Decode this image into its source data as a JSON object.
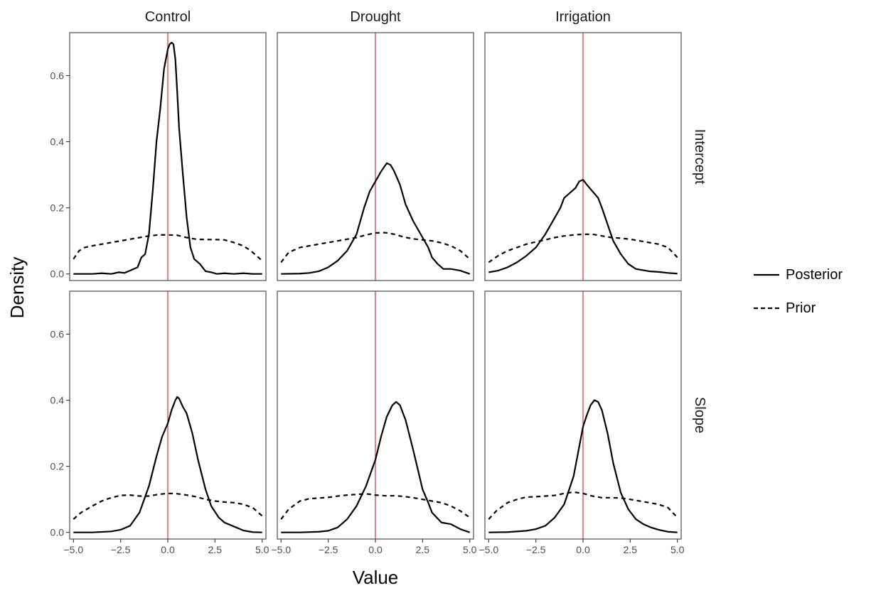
{
  "chart_data": {
    "type": "line",
    "facets": {
      "columns": [
        "Control",
        "Drought",
        "Irrigation"
      ],
      "rows": [
        "Intercept",
        "Slope"
      ]
    },
    "xlabel": "Value",
    "ylabel": "Density",
    "xlim": [
      -5.2,
      5.2
    ],
    "ylim": [
      -0.02,
      0.73
    ],
    "x_ticks": [
      -5.0,
      -2.5,
      0.0,
      2.5,
      5.0
    ],
    "x_tick_labels": [
      "−5.0",
      "−2.5",
      "0.0",
      "2.5",
      "5.0"
    ],
    "y_ticks": [
      0.0,
      0.2,
      0.4,
      0.6
    ],
    "y_tick_labels": [
      "0.0",
      "0.2",
      "0.4",
      "0.6"
    ],
    "reference_line": {
      "x": 0,
      "color": "#e41a1c"
    },
    "legend": {
      "placement": "right",
      "entries": [
        {
          "label": "Posterior",
          "linetype": "solid"
        },
        {
          "label": "Prior",
          "linetype": "dashed"
        }
      ]
    },
    "grid": false,
    "panels": [
      {
        "row": "Intercept",
        "column": "Control",
        "series": [
          {
            "name": "Posterior",
            "linetype": "solid",
            "x": [
              -5,
              -4,
              -3.5,
              -3,
              -2.6,
              -2.3,
              -2,
              -1.6,
              -1.4,
              -1.2,
              -1,
              -0.8,
              -0.6,
              -0.4,
              -0.2,
              0,
              0.1,
              0.2,
              0.3,
              0.4,
              0.5,
              0.6,
              0.8,
              1,
              1.2,
              1.4,
              1.7,
              2,
              2.3,
              2.6,
              3,
              3.5,
              4,
              4.5,
              5
            ],
            "y": [
              0.0,
              0.0,
              0.002,
              0.0,
              0.005,
              0.003,
              0.01,
              0.02,
              0.05,
              0.06,
              0.12,
              0.25,
              0.4,
              0.5,
              0.62,
              0.68,
              0.695,
              0.7,
              0.695,
              0.65,
              0.55,
              0.44,
              0.3,
              0.17,
              0.08,
              0.045,
              0.03,
              0.008,
              0.005,
              0.0,
              0.002,
              0.0,
              0.002,
              0.0,
              0.0
            ]
          },
          {
            "name": "Prior",
            "linetype": "dashed",
            "x": [
              -5,
              -4.7,
              -4.4,
              -4,
              -3.5,
              -3,
              -2.5,
              -2,
              -1.5,
              -1,
              -0.5,
              0,
              0.5,
              1,
              1.5,
              2,
              2.5,
              3,
              3.5,
              4,
              4.4,
              4.7,
              5
            ],
            "y": [
              0.045,
              0.07,
              0.08,
              0.085,
              0.09,
              0.095,
              0.1,
              0.105,
              0.11,
              0.115,
              0.118,
              0.118,
              0.117,
              0.11,
              0.105,
              0.104,
              0.104,
              0.103,
              0.095,
              0.085,
              0.07,
              0.055,
              0.04
            ]
          }
        ]
      },
      {
        "row": "Intercept",
        "column": "Drought",
        "series": [
          {
            "name": "Posterior",
            "linetype": "solid",
            "x": [
              -5,
              -4,
              -3.5,
              -3,
              -2.5,
              -2,
              -1.5,
              -1,
              -0.6,
              -0.3,
              0,
              0.3,
              0.6,
              0.8,
              1,
              1.3,
              1.6,
              2,
              2.5,
              2.8,
              3,
              3.3,
              3.6,
              4,
              4.5,
              5
            ],
            "y": [
              0.0,
              0.001,
              0.003,
              0.008,
              0.02,
              0.04,
              0.07,
              0.12,
              0.2,
              0.25,
              0.28,
              0.31,
              0.335,
              0.33,
              0.31,
              0.27,
              0.21,
              0.16,
              0.11,
              0.08,
              0.05,
              0.03,
              0.015,
              0.015,
              0.01,
              0.0
            ]
          },
          {
            "name": "Prior",
            "linetype": "dashed",
            "x": [
              -5,
              -4.6,
              -4,
              -3.5,
              -3,
              -2.5,
              -2,
              -1.5,
              -1,
              -0.5,
              0,
              0.5,
              1,
              1.5,
              2,
              2.5,
              3,
              3.5,
              4,
              4.5,
              5
            ],
            "y": [
              0.035,
              0.065,
              0.08,
              0.085,
              0.09,
              0.095,
              0.1,
              0.105,
              0.11,
              0.118,
              0.124,
              0.125,
              0.12,
              0.112,
              0.106,
              0.103,
              0.1,
              0.094,
              0.085,
              0.07,
              0.045
            ]
          }
        ]
      },
      {
        "row": "Intercept",
        "column": "Irrigation",
        "series": [
          {
            "name": "Posterior",
            "linetype": "solid",
            "x": [
              -5,
              -4.5,
              -4,
              -3.5,
              -3,
              -2.5,
              -2,
              -1.5,
              -1.2,
              -1,
              -0.7,
              -0.4,
              -0.2,
              0,
              0.2,
              0.5,
              0.8,
              1,
              1.3,
              1.6,
              2,
              2.4,
              2.8,
              3.5,
              4,
              4.5,
              5
            ],
            "y": [
              0.005,
              0.01,
              0.02,
              0.035,
              0.055,
              0.08,
              0.12,
              0.17,
              0.2,
              0.23,
              0.245,
              0.26,
              0.28,
              0.285,
              0.27,
              0.25,
              0.23,
              0.2,
              0.15,
              0.1,
              0.06,
              0.03,
              0.015,
              0.008,
              0.006,
              0.003,
              0.001
            ]
          },
          {
            "name": "Prior",
            "linetype": "dashed",
            "x": [
              -5,
              -4.5,
              -4,
              -3.5,
              -3,
              -2.5,
              -2,
              -1.5,
              -1,
              -0.5,
              0,
              0.5,
              1,
              1.5,
              2,
              2.5,
              3,
              3.5,
              4,
              4.5,
              5
            ],
            "y": [
              0.035,
              0.055,
              0.07,
              0.08,
              0.09,
              0.097,
              0.103,
              0.11,
              0.115,
              0.118,
              0.12,
              0.12,
              0.115,
              0.11,
              0.108,
              0.105,
              0.1,
              0.095,
              0.09,
              0.08,
              0.05
            ]
          }
        ]
      },
      {
        "row": "Slope",
        "column": "Control",
        "series": [
          {
            "name": "Posterior",
            "linetype": "solid",
            "x": [
              -5,
              -4,
              -3,
              -2.5,
              -2,
              -1.5,
              -1,
              -0.6,
              -0.3,
              0,
              0.2,
              0.4,
              0.5,
              0.6,
              0.8,
              1,
              1.3,
              1.6,
              2,
              2.3,
              2.7,
              3,
              3.5,
              4,
              4.5,
              5
            ],
            "y": [
              0.0,
              0.0,
              0.003,
              0.008,
              0.02,
              0.06,
              0.14,
              0.23,
              0.29,
              0.33,
              0.37,
              0.4,
              0.41,
              0.405,
              0.38,
              0.36,
              0.3,
              0.22,
              0.13,
              0.08,
              0.045,
              0.03,
              0.018,
              0.006,
              0.001,
              0.0
            ]
          },
          {
            "name": "Prior",
            "linetype": "dashed",
            "x": [
              -5,
              -4.6,
              -4,
              -3.5,
              -3,
              -2.5,
              -2,
              -1.5,
              -1,
              -0.5,
              0,
              0.5,
              1,
              1.5,
              2,
              2.5,
              3,
              3.5,
              4,
              4.5,
              5
            ],
            "y": [
              0.04,
              0.06,
              0.08,
              0.095,
              0.105,
              0.112,
              0.113,
              0.11,
              0.11,
              0.115,
              0.118,
              0.117,
              0.113,
              0.108,
              0.1,
              0.095,
              0.092,
              0.09,
              0.085,
              0.075,
              0.05
            ]
          }
        ]
      },
      {
        "row": "Slope",
        "column": "Drought",
        "series": [
          {
            "name": "Posterior",
            "linetype": "solid",
            "x": [
              -5,
              -4,
              -3,
              -2.5,
              -2,
              -1.5,
              -1,
              -0.5,
              0,
              0.3,
              0.6,
              0.9,
              1.1,
              1.3,
              1.6,
              2,
              2.5,
              2.8,
              3,
              3.5,
              4,
              4.5,
              5
            ],
            "y": [
              0.0,
              0.0,
              0.002,
              0.005,
              0.015,
              0.04,
              0.08,
              0.14,
              0.22,
              0.29,
              0.35,
              0.385,
              0.395,
              0.385,
              0.34,
              0.25,
              0.13,
              0.09,
              0.06,
              0.03,
              0.025,
              0.01,
              0.0
            ]
          },
          {
            "name": "Prior",
            "linetype": "dashed",
            "x": [
              -5,
              -4.6,
              -4,
              -3.5,
              -3,
              -2.5,
              -2,
              -1.5,
              -1,
              -0.5,
              0,
              0.5,
              1,
              1.5,
              2,
              2.5,
              3,
              3.5,
              4,
              4.5,
              5
            ],
            "y": [
              0.04,
              0.07,
              0.095,
              0.102,
              0.104,
              0.106,
              0.11,
              0.113,
              0.115,
              0.117,
              0.113,
              0.111,
              0.111,
              0.109,
              0.105,
              0.1,
              0.095,
              0.09,
              0.08,
              0.065,
              0.045
            ]
          }
        ]
      },
      {
        "row": "Slope",
        "column": "Irrigation",
        "series": [
          {
            "name": "Posterior",
            "linetype": "solid",
            "x": [
              -5,
              -4,
              -3,
              -2.5,
              -2,
              -1.5,
              -1,
              -0.5,
              -0.2,
              0,
              0.2,
              0.4,
              0.6,
              0.8,
              1,
              1.3,
              1.6,
              2,
              2.4,
              2.8,
              3.2,
              3.6,
              4,
              4.5,
              5
            ],
            "y": [
              0.0,
              0.001,
              0.005,
              0.01,
              0.02,
              0.045,
              0.085,
              0.17,
              0.26,
              0.32,
              0.355,
              0.385,
              0.4,
              0.395,
              0.37,
              0.3,
              0.21,
              0.12,
              0.07,
              0.04,
              0.025,
              0.015,
              0.008,
              0.002,
              0.0
            ]
          },
          {
            "name": "Prior",
            "linetype": "dashed",
            "x": [
              -5,
              -4.6,
              -4,
              -3.5,
              -3,
              -2.5,
              -2,
              -1.5,
              -1,
              -0.5,
              0,
              0.5,
              1,
              1.5,
              2,
              2.5,
              3,
              3.5,
              4,
              4.5,
              5
            ],
            "y": [
              0.04,
              0.065,
              0.09,
              0.1,
              0.107,
              0.108,
              0.11,
              0.112,
              0.118,
              0.122,
              0.118,
              0.11,
              0.105,
              0.105,
              0.104,
              0.1,
              0.095,
              0.09,
              0.085,
              0.075,
              0.045
            ]
          }
        ]
      }
    ]
  }
}
